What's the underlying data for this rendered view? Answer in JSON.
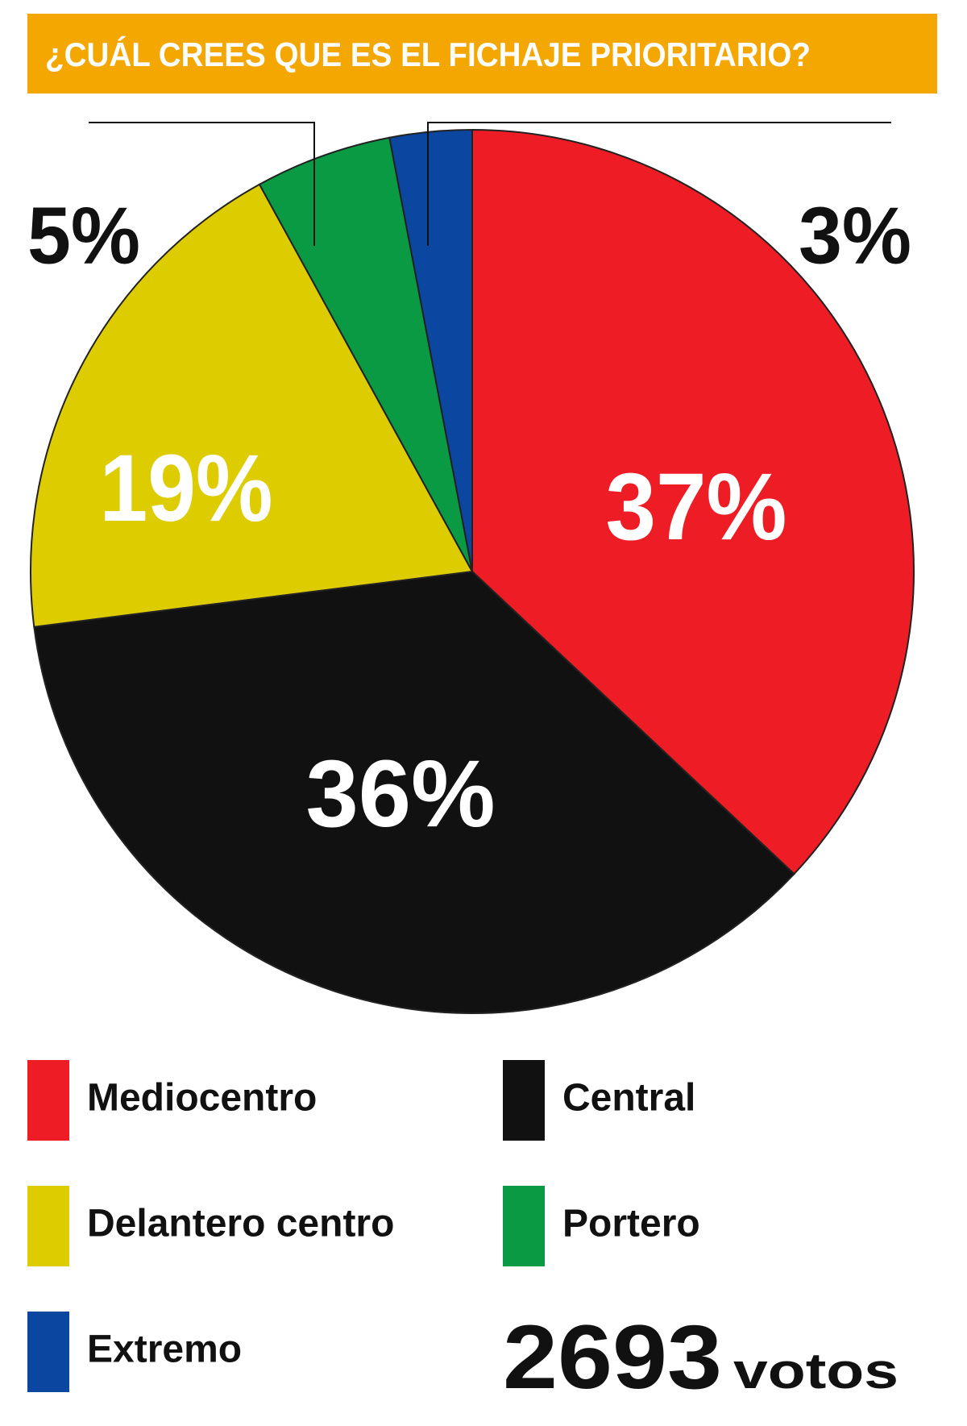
{
  "chart_data": {
    "type": "pie",
    "title": "¿CUÁL CREES QUE ES EL FICHAJE PRIORITARIO?",
    "categories": [
      "Mediocentro",
      "Central",
      "Delantero centro",
      "Portero",
      "Extremo"
    ],
    "values": [
      37,
      36,
      19,
      5,
      3
    ],
    "value_labels": [
      "37%",
      "36%",
      "19%",
      "5%",
      "3%"
    ],
    "colors": [
      "#ee1c24",
      "#111111",
      "#ddcc00",
      "#0a9a44",
      "#0b47a1"
    ],
    "votes": 2693,
    "votes_label": "votos"
  }
}
